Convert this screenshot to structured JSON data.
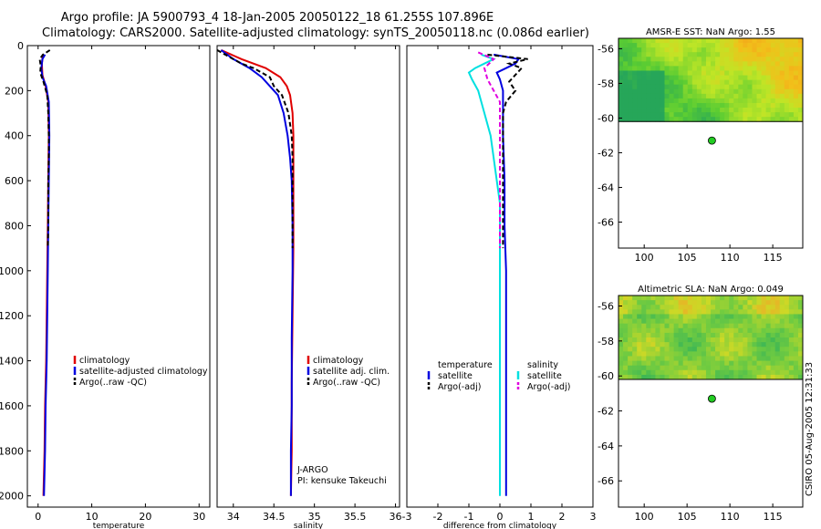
{
  "title": {
    "line1": "Argo profile: JA 5900793_4 18-Jan-2005 20050122_18 61.255S 107.896E",
    "line2": "Climatology: CARS2000. Satellite-adjusted climatology: synTS_20050118.nc (0.086d earlier)"
  },
  "credit": "CSIRO 05-Aug-2005 12:31:33",
  "colors": {
    "climatology": "#e00000",
    "satellite": "#0000e0",
    "argo": "#000000",
    "salinity_sat": "#00e0e0",
    "salinity_argo": "#e000e0",
    "marker": "#22cc22"
  },
  "chart_data": [
    {
      "type": "line",
      "id": "temperature",
      "xlabel": "temperature",
      "ylabel": "",
      "xlim": [
        -2,
        32
      ],
      "ylim": [
        2050,
        0
      ],
      "xticks": [
        0,
        10,
        20,
        30
      ],
      "yticks": [
        0,
        200,
        400,
        600,
        800,
        1000,
        1200,
        1400,
        1600,
        1800,
        2000
      ],
      "legend": [
        {
          "label": "climatology",
          "color": "#e00000",
          "dash": false
        },
        {
          "label": "satellite-adjusted climatology",
          "color": "#0000e0",
          "dash": false
        },
        {
          "label": "Argo(..raw -QC)",
          "color": "#000000",
          "dash": true
        }
      ],
      "series": [
        {
          "name": "climatology",
          "color": "#e00000",
          "dash": false,
          "depth": [
            40,
            80,
            130,
            180,
            250,
            400,
            600,
            800,
            1000,
            1200,
            1400,
            1600,
            1800,
            2000
          ],
          "values": [
            0.9,
            0.7,
            0.8,
            1.4,
            1.9,
            2.0,
            1.9,
            1.8,
            1.7,
            1.6,
            1.5,
            1.3,
            1.2,
            1.0
          ]
        },
        {
          "name": "satellite",
          "color": "#0000e0",
          "dash": false,
          "depth": [
            40,
            60,
            100,
            140,
            180,
            250,
            400,
            600,
            800,
            1000,
            1200,
            1400,
            1600,
            1800,
            2000
          ],
          "values": [
            1.3,
            0.8,
            0.6,
            0.8,
            1.5,
            2.0,
            2.1,
            2.0,
            1.9,
            1.8,
            1.7,
            1.6,
            1.4,
            1.3,
            1.1
          ]
        },
        {
          "name": "argo",
          "color": "#000000",
          "dash": true,
          "depth": [
            20,
            40,
            60,
            90,
            120,
            160,
            220,
            300,
            400,
            500,
            600,
            700,
            800,
            900
          ],
          "values": [
            2.2,
            0.9,
            0.3,
            0.5,
            0.4,
            1.0,
            1.7,
            1.9,
            2.0,
            2.0,
            1.9,
            1.9,
            1.9,
            1.8
          ]
        }
      ]
    },
    {
      "type": "line",
      "id": "salinity",
      "xlabel": "salinity",
      "ylabel": "",
      "xlim": [
        33.8,
        36.05
      ],
      "ylim": [
        2050,
        0
      ],
      "xticks": [
        34,
        34.5,
        35,
        35.5,
        36
      ],
      "xtick_labels": [
        "34",
        "34.5",
        "35",
        "35.5",
        "36"
      ],
      "yticks": [],
      "legend": [
        {
          "label": "climatology",
          "color": "#e00000",
          "dash": false
        },
        {
          "label": "satellite adj. clim.",
          "color": "#0000e0",
          "dash": false
        },
        {
          "label": "Argo(..raw -QC)",
          "color": "#000000",
          "dash": true
        }
      ],
      "annotation": [
        "J-ARGO",
        "PI: kensuke Takeuchi"
      ],
      "series": [
        {
          "name": "climatology",
          "color": "#e00000",
          "dash": false,
          "depth": [
            20,
            60,
            100,
            140,
            180,
            220,
            300,
            400,
            500,
            700,
            900,
            1200,
            1500,
            1800,
            2000
          ],
          "values": [
            33.85,
            34.1,
            34.4,
            34.58,
            34.66,
            34.7,
            34.73,
            34.74,
            34.74,
            34.74,
            34.74,
            34.73,
            34.72,
            34.72,
            34.71
          ]
        },
        {
          "name": "satellite",
          "color": "#0000e0",
          "dash": false,
          "depth": [
            20,
            60,
            100,
            140,
            180,
            220,
            300,
            400,
            500,
            600,
            800,
            1000,
            1300,
            1600,
            1800,
            2000
          ],
          "values": [
            33.85,
            34.0,
            34.2,
            34.35,
            34.45,
            34.55,
            34.62,
            34.67,
            34.7,
            34.72,
            34.73,
            34.73,
            34.72,
            34.72,
            34.71,
            34.71
          ]
        },
        {
          "name": "argo",
          "color": "#000000",
          "dash": true,
          "depth": [
            20,
            40,
            80,
            100,
            140,
            180,
            220,
            300,
            400,
            500,
            600,
            700,
            800,
            900
          ],
          "values": [
            33.8,
            33.9,
            34.1,
            34.25,
            34.45,
            34.5,
            34.6,
            34.68,
            34.72,
            34.73,
            34.73,
            34.73,
            34.73,
            34.73
          ]
        }
      ]
    },
    {
      "type": "line",
      "id": "difference",
      "xlabel": "difference from climatology",
      "ylabel": "",
      "xlim": [
        -3,
        3
      ],
      "ylim": [
        2050,
        0
      ],
      "xticks": [
        -3,
        -2,
        -1,
        0,
        1,
        2,
        3
      ],
      "yticks": [],
      "legend_temperature": {
        "title": "temperature",
        "items": [
          {
            "label": "satellite",
            "color": "#0000e0",
            "dash": false
          },
          {
            "label": "Argo(-adj)",
            "color": "#000000",
            "dash": true
          }
        ]
      },
      "legend_salinity": {
        "title": "salinity",
        "items": [
          {
            "label": "satellite",
            "color": "#00e0e0",
            "dash": false
          },
          {
            "label": "Argo(-adj)",
            "color": "#e000e0",
            "dash": true
          }
        ]
      },
      "series": [
        {
          "name": "temperature satellite",
          "color": "#0000e0",
          "dash": false,
          "depth": [
            40,
            60,
            80,
            100,
            120,
            150,
            200,
            300,
            400,
            600,
            800,
            1000,
            1400,
            1800,
            2000
          ],
          "values": [
            -0.2,
            0.6,
            0.5,
            0.2,
            -0.1,
            0.0,
            0.1,
            0.1,
            0.1,
            0.15,
            0.15,
            0.2,
            0.2,
            0.2,
            0.2
          ]
        },
        {
          "name": "temperature argo",
          "color": "#000000",
          "dash": true,
          "depth": [
            40,
            60,
            80,
            100,
            130,
            160,
            200,
            250,
            300,
            400,
            500,
            600,
            700,
            800,
            900
          ],
          "values": [
            -0.4,
            0.9,
            0.3,
            0.7,
            0.5,
            0.3,
            0.5,
            0.2,
            0.1,
            0.1,
            0.1,
            0.1,
            0.1,
            0.1,
            0.1
          ]
        },
        {
          "name": "salinity satellite",
          "color": "#00e0e0",
          "dash": false,
          "depth": [
            40,
            60,
            80,
            100,
            120,
            150,
            200,
            300,
            400,
            500,
            600,
            700,
            800,
            1000,
            1400,
            1800,
            2000
          ],
          "values": [
            -0.6,
            -0.2,
            -0.5,
            -0.8,
            -1.0,
            -0.9,
            -0.7,
            -0.5,
            -0.3,
            -0.2,
            -0.1,
            0.0,
            0.0,
            0.0,
            0.0,
            0.0,
            0.0
          ]
        },
        {
          "name": "salinity argo",
          "color": "#e000e0",
          "dash": true,
          "depth": [
            30,
            60,
            100,
            150,
            200,
            250,
            300,
            400,
            500,
            600,
            700,
            800,
            900
          ],
          "values": [
            -0.7,
            -0.2,
            -0.5,
            -0.4,
            -0.2,
            0.0,
            0.0,
            0.0,
            0.0,
            0.0,
            0.0,
            0.0,
            0.0
          ]
        }
      ]
    },
    {
      "type": "heatmap",
      "id": "sst-map",
      "title": "AMSR-E SST: NaN Argo: 1.55",
      "xlim": [
        97,
        118.5
      ],
      "ylim": [
        -67.5,
        -55.4
      ],
      "xticks": [
        100,
        105,
        110,
        115
      ],
      "yticks": [
        -56,
        -58,
        -60,
        -62,
        -64,
        -66
      ],
      "data_lat_min": -60.2,
      "marker": {
        "lon": 107.9,
        "lat": -61.3
      }
    },
    {
      "type": "heatmap",
      "id": "sla-map",
      "title": "Altimetric SLA: NaN Argo: 0.049",
      "xlim": [
        97,
        118.5
      ],
      "ylim": [
        -67.5,
        -55.4
      ],
      "xticks": [
        100,
        105,
        110,
        115
      ],
      "yticks": [
        -56,
        -58,
        -60,
        -62,
        -64,
        -66
      ],
      "data_lat_min": -60.2,
      "marker": {
        "lon": 107.9,
        "lat": -61.3
      }
    }
  ]
}
